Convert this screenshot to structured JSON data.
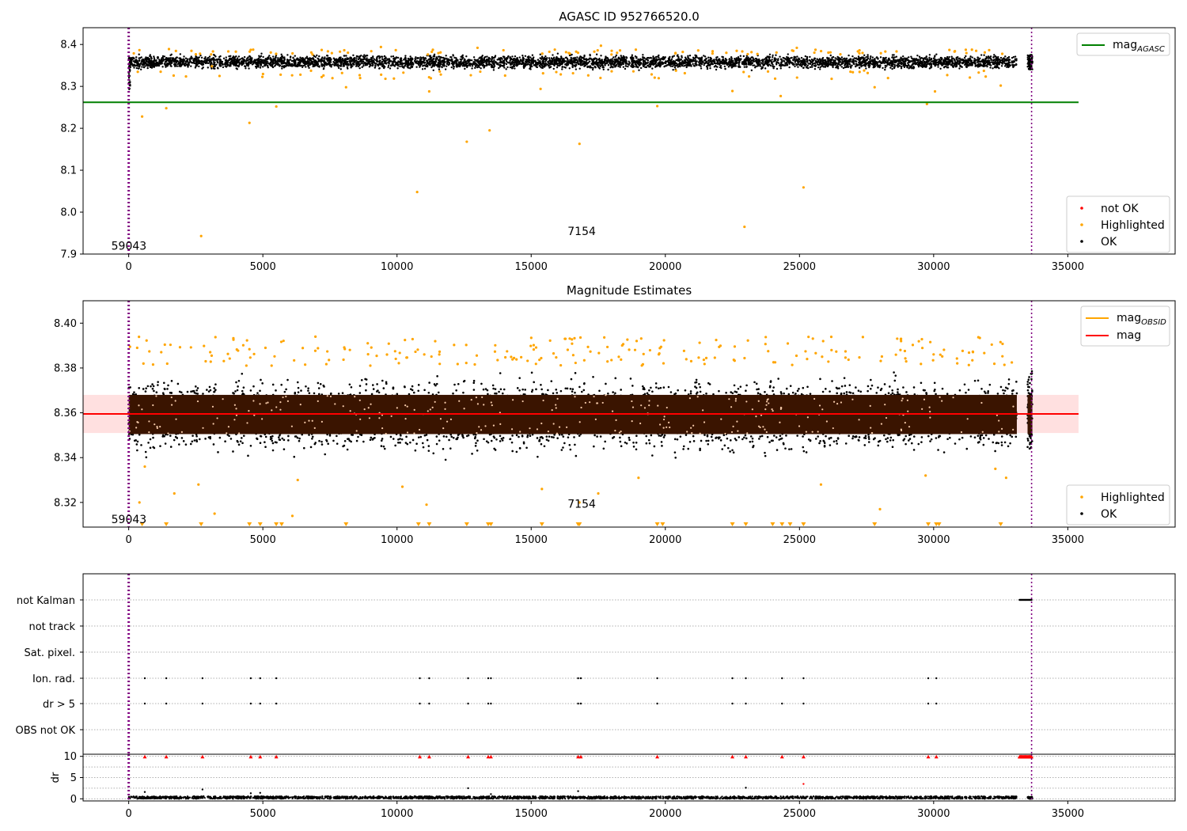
{
  "chart_data": [
    {
      "type": "scatter",
      "title": "AGASC ID 952766520.0",
      "xlim": [
        -1700,
        39000
      ],
      "ylim": [
        7.9,
        8.44
      ],
      "xticks": [
        0,
        5000,
        10000,
        15000,
        20000,
        25000,
        30000,
        35000
      ],
      "yticks": [
        7.9,
        8.0,
        8.1,
        8.2,
        8.3,
        8.4
      ],
      "grid": false,
      "legend_lines": [
        {
          "label_main": "mag",
          "label_sub": "AGASC",
          "color": "#008000",
          "kind": "line"
        }
      ],
      "legend_lines_position": "top-right",
      "legend_points": [
        {
          "label": "not OK",
          "color": "#ff0000"
        },
        {
          "label": "Highlighted",
          "color": "#ffa500"
        },
        {
          "label": "OK",
          "color": "#000000"
        }
      ],
      "legend_points_position": "bottom-right",
      "hline": {
        "name": "mag_AGASC",
        "y": 8.262,
        "x_range": [
          -1700,
          35400
        ],
        "color": "#008000"
      },
      "vlines": [
        {
          "x": 0,
          "color": "#800080"
        },
        {
          "x": 33650,
          "color": "#800080"
        }
      ],
      "annotations": [
        {
          "text": "59043",
          "x": 0,
          "y": 7.92
        },
        {
          "text": "7154",
          "x": 16800,
          "y": 7.955
        }
      ],
      "ok_band": {
        "x_range": [
          0,
          33100
        ],
        "y_range": [
          8.34,
          8.38
        ],
        "second_segment_x": [
          33500,
          33680
        ]
      },
      "highlighted_points": [
        [
          500,
          8.228
        ],
        [
          1400,
          8.248
        ],
        [
          2700,
          7.943
        ],
        [
          4500,
          8.213
        ],
        [
          5500,
          8.252
        ],
        [
          10750,
          8.048
        ],
        [
          12600,
          8.168
        ],
        [
          13450,
          8.195
        ],
        [
          16800,
          8.163
        ],
        [
          19700,
          8.253
        ],
        [
          22950,
          7.965
        ],
        [
          25150,
          8.059
        ],
        [
          24300,
          8.277
        ],
        [
          29750,
          8.258
        ],
        [
          30050,
          8.288
        ],
        [
          3100,
          8.348
        ],
        [
          6400,
          8.328
        ],
        [
          8100,
          8.298
        ],
        [
          11200,
          8.288
        ],
        [
          15350,
          8.294
        ],
        [
          18000,
          8.336
        ],
        [
          22500,
          8.289
        ],
        [
          26900,
          8.335
        ],
        [
          27800,
          8.298
        ],
        [
          32500,
          8.302
        ],
        [
          1500,
          8.389
        ],
        [
          9400,
          8.394
        ],
        [
          17600,
          8.397
        ],
        [
          24900,
          8.392
        ],
        [
          13000,
          8.392
        ]
      ]
    },
    {
      "type": "scatter",
      "title": "Magnitude Estimates",
      "xlim": [
        -1700,
        39000
      ],
      "ylim": [
        8.309,
        8.41
      ],
      "xticks": [
        0,
        5000,
        10000,
        15000,
        20000,
        25000,
        30000,
        35000
      ],
      "yticks": [
        8.32,
        8.34,
        8.36,
        8.38,
        8.4
      ],
      "grid": false,
      "legend_lines": [
        {
          "label_main": "mag",
          "label_sub": "OBSID",
          "color": "#ffa500",
          "kind": "line"
        },
        {
          "label_main": "mag",
          "label_sub": "",
          "color": "#ff0000",
          "kind": "line"
        }
      ],
      "legend_lines_position": "top-right",
      "legend_points": [
        {
          "label": "Highlighted",
          "color": "#ffa500"
        },
        {
          "label": "OK",
          "color": "#000000"
        }
      ],
      "legend_points_position": "bottom-right",
      "hline": {
        "name": "mag",
        "y": 8.3595,
        "x_range": [
          -1700,
          35400
        ],
        "color": "#ff0000"
      },
      "band": {
        "y_range": [
          8.351,
          8.368
        ],
        "x_range": [
          -1700,
          35400
        ],
        "color": "#ffcccc"
      },
      "vlines": [
        {
          "x": 0,
          "color": "#800080"
        },
        {
          "x": 33650,
          "color": "#800080"
        }
      ],
      "annotations": [
        {
          "text": "59043",
          "x": 0,
          "y": 8.3125
        },
        {
          "text": "7154",
          "x": 16800,
          "y": 8.3195
        }
      ],
      "ok_core": {
        "y_range": [
          8.3505,
          8.368
        ],
        "color": "#3a1400"
      },
      "ok_spread": {
        "y_range": [
          8.338,
          8.383
        ]
      },
      "clipped_marker_x": [
        500,
        1400,
        2700,
        4500,
        4900,
        5500,
        5700,
        8100,
        10800,
        11200,
        12600,
        13400,
        13500,
        15400,
        16750,
        16800,
        19700,
        19900,
        22500,
        23000,
        24000,
        24350,
        24650,
        25150,
        27800,
        29800,
        30100,
        30200,
        32500
      ],
      "highlighted_points": [
        [
          600,
          8.336
        ],
        [
          400,
          8.32
        ],
        [
          1700,
          8.324
        ],
        [
          3200,
          8.315
        ],
        [
          6100,
          8.314
        ],
        [
          6300,
          8.33
        ],
        [
          10200,
          8.327
        ],
        [
          11100,
          8.319
        ],
        [
          15400,
          8.326
        ],
        [
          16800,
          8.32
        ],
        [
          17500,
          8.324
        ],
        [
          19000,
          8.331
        ],
        [
          25800,
          8.328
        ],
        [
          28000,
          8.317
        ],
        [
          29700,
          8.332
        ],
        [
          32700,
          8.331
        ],
        [
          32300,
          8.335
        ],
        [
          2600,
          8.328
        ]
      ]
    },
    {
      "type": "scatter",
      "xlim": [
        -1700,
        39000
      ],
      "xticks": [
        0,
        5000,
        10000,
        15000,
        20000,
        25000,
        30000,
        35000
      ],
      "flag_labels": [
        "not Kalman",
        "not track",
        "Sat. pixel.",
        "Ion. rad.",
        "dr > 5",
        "OBS not OK"
      ],
      "grid": true,
      "flags": {
        "not Kalman": {
          "segments": [
            [
              33200,
              33650
            ]
          ]
        },
        "not track": {
          "points": []
        },
        "Sat. pixel.": {
          "points": []
        },
        "Ion. rad.": {
          "points": [
            600,
            1400,
            2750,
            4550,
            4900,
            5500,
            10850,
            11200,
            12650,
            13400,
            13500,
            16750,
            16850,
            19700,
            22500,
            23000,
            24350,
            25150,
            29800,
            30100
          ]
        },
        "dr > 5": {
          "points": [
            600,
            1400,
            2750,
            4550,
            4900,
            5500,
            10850,
            11200,
            12650,
            13400,
            13500,
            16750,
            16850,
            19700,
            22500,
            23000,
            24350,
            25150,
            29800,
            30100
          ]
        },
        "OBS not OK": {
          "points": []
        }
      },
      "vlines": [
        {
          "x": 0,
          "color": "#800080"
        },
        {
          "x": 33650,
          "color": "#800080"
        }
      ]
    },
    {
      "type": "scatter",
      "xlim": [
        -1700,
        39000
      ],
      "ylim": [
        -0.5,
        10.5
      ],
      "ylabel": "dr",
      "yticks": [
        0,
        5,
        10
      ],
      "xticks": [
        0,
        5000,
        10000,
        15000,
        20000,
        25000,
        30000,
        35000
      ],
      "xtick_labels": [
        "0",
        "5000",
        "10000",
        "15000",
        "20000",
        "25000",
        "30000",
        "35000"
      ],
      "grid": true,
      "clipped_red_x": [
        600,
        1400,
        2750,
        4550,
        4900,
        5500,
        10850,
        11200,
        12650,
        13400,
        13500,
        16750,
        16850,
        19700,
        22500,
        23000,
        24350,
        25150,
        29800,
        30100
      ],
      "clipped_red_band": [
        33200,
        33650
      ],
      "notok_points": [
        [
          25150,
          3.5
        ]
      ],
      "ok_outliers": [
        [
          600,
          1.6
        ],
        [
          2750,
          2.2
        ],
        [
          4550,
          1.3
        ],
        [
          4900,
          1.4
        ],
        [
          12650,
          2.5
        ],
        [
          16750,
          1.8
        ],
        [
          23000,
          2.6
        ],
        [
          13500,
          1.1
        ]
      ],
      "vlines": [
        {
          "x": 0,
          "color": "#800080"
        },
        {
          "x": 33650,
          "color": "#800080"
        }
      ]
    }
  ]
}
